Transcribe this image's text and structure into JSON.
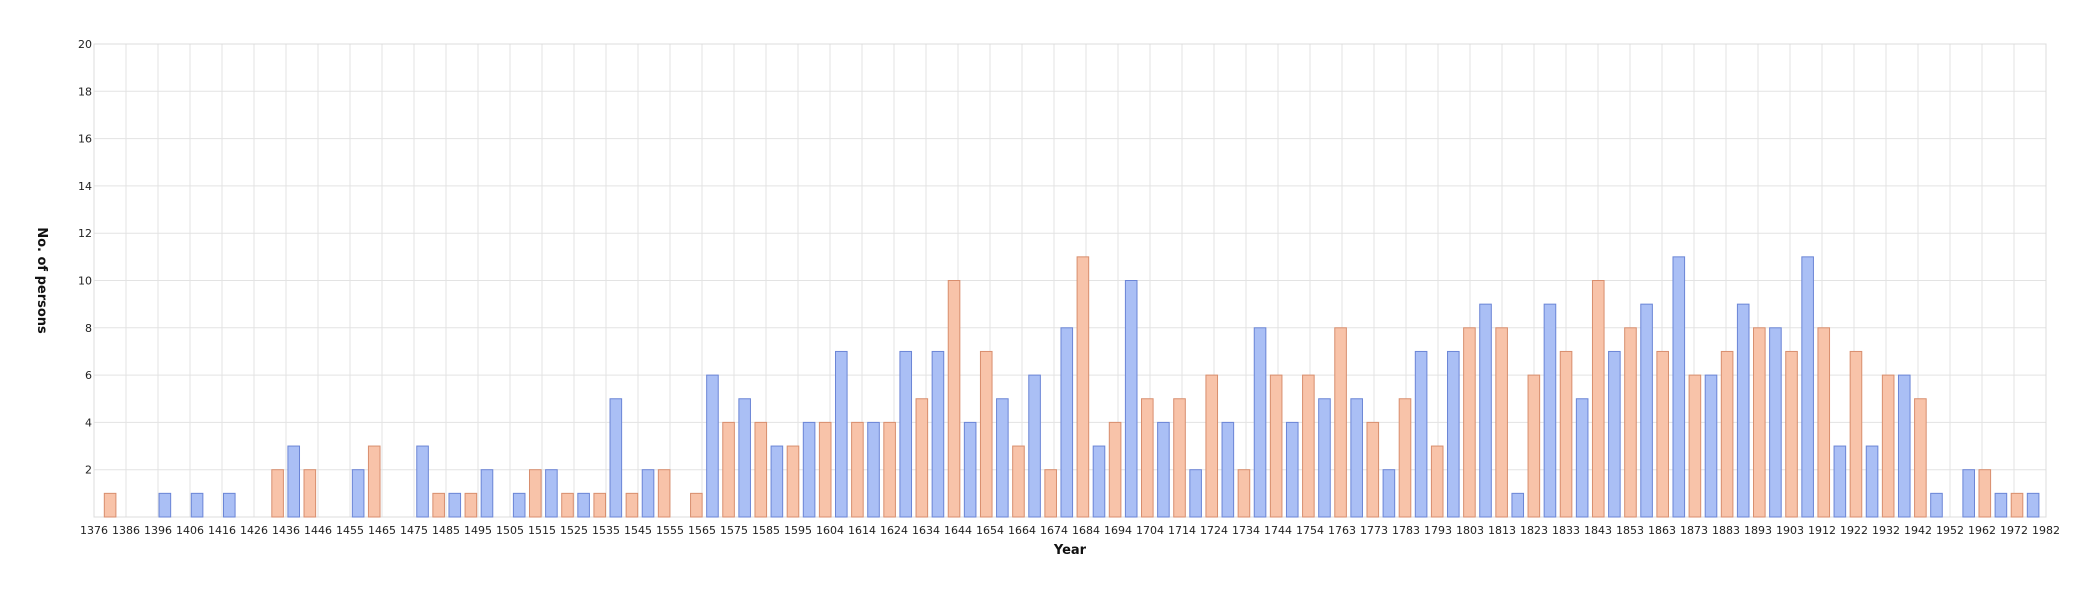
{
  "chart_data": {
    "type": "bar",
    "title": "",
    "xlabel": "Year",
    "ylabel": "No. of persons",
    "ylim": [
      0,
      20
    ],
    "yticks": [
      2,
      4,
      6,
      8,
      10,
      12,
      14,
      16,
      18,
      20
    ],
    "xticks": [
      "1376",
      "1386",
      "1396",
      "1406",
      "1416",
      "1426",
      "1436",
      "1446",
      "1455",
      "1465",
      "1475",
      "1485",
      "1495",
      "1505",
      "1515",
      "1525",
      "1535",
      "1545",
      "1555",
      "1565",
      "1575",
      "1585",
      "1595",
      "1604",
      "1614",
      "1624",
      "1634",
      "1644",
      "1654",
      "1664",
      "1674",
      "1684",
      "1694",
      "1704",
      "1714",
      "1724",
      "1734",
      "1744",
      "1754",
      "1763",
      "1773",
      "1783",
      "1793",
      "1803",
      "1813",
      "1823",
      "1833",
      "1843",
      "1853",
      "1863",
      "1873",
      "1883",
      "1893",
      "1903",
      "1912",
      "1922",
      "1932",
      "1942",
      "1952",
      "1962",
      "1972",
      "1982"
    ],
    "grid": true,
    "legend": "none",
    "colors": {
      "blue_fill": "#aabff5",
      "blue_stroke": "#6b85d6",
      "orange_fill": "#f8c3a9",
      "orange_stroke": "#d88e6e"
    },
    "series": [
      {
        "color": "blue",
        "values": [
          null,
          0,
          1,
          1,
          1,
          0,
          0,
          3,
          0,
          2,
          0,
          0,
          3,
          1,
          0,
          2,
          0,
          1,
          2,
          1,
          5,
          0,
          2,
          0,
          0,
          0,
          0,
          6,
          0,
          5,
          0,
          3,
          0,
          4,
          0,
          7,
          0,
          4,
          0,
          4,
          0,
          7,
          0,
          7,
          0,
          4,
          0,
          5,
          0,
          6,
          0,
          8,
          0,
          3,
          0,
          10,
          0,
          4,
          0,
          2,
          0,
          4,
          0,
          8,
          0,
          4,
          0,
          5,
          0,
          5,
          0,
          2,
          0,
          7,
          0,
          7,
          0,
          9,
          0,
          1,
          0,
          9,
          0,
          5,
          0,
          7,
          0,
          9,
          0,
          11,
          0,
          6,
          0,
          9,
          0,
          8,
          0,
          11,
          0,
          3,
          0,
          3,
          0,
          6,
          0,
          1,
          0,
          2,
          0,
          1,
          0,
          1
        ]
      },
      {
        "color": "orange",
        "values": [
          1,
          0,
          0,
          0,
          0,
          0,
          2,
          0,
          2,
          0,
          0,
          3,
          0,
          0,
          1,
          0,
          1,
          0,
          0,
          2,
          0,
          1,
          0,
          1,
          0,
          1,
          0,
          2,
          0,
          0,
          1,
          0,
          0,
          4,
          0,
          4,
          0,
          3,
          0,
          4,
          0,
          4,
          0,
          4,
          0,
          5,
          0,
          10,
          0,
          7,
          0,
          3,
          0,
          2,
          0,
          11,
          0,
          4,
          0,
          5,
          0,
          5,
          0,
          6,
          0,
          2,
          0,
          6,
          0,
          6,
          0,
          8,
          0,
          4,
          0,
          5,
          0,
          3,
          0,
          8,
          0,
          8,
          0,
          6,
          0,
          7,
          0,
          10,
          0,
          8,
          0,
          7,
          0,
          6,
          0,
          7,
          0,
          8,
          0,
          7,
          0,
          8,
          0,
          7,
          0,
          6,
          0,
          5,
          0,
          2,
          0,
          1,
          0
        ]
      }
    ],
    "bars": [
      {
        "x": 1381,
        "y": 1,
        "c": "orange"
      },
      {
        "x": 1398,
        "y": 1,
        "c": "blue"
      },
      {
        "x": 1408,
        "y": 1,
        "c": "blue"
      },
      {
        "x": 1418,
        "y": 1,
        "c": "blue"
      },
      {
        "x": 1433,
        "y": 2,
        "c": "orange"
      },
      {
        "x": 1438,
        "y": 3,
        "c": "blue"
      },
      {
        "x": 1443,
        "y": 2,
        "c": "orange"
      },
      {
        "x": 1458,
        "y": 2,
        "c": "blue"
      },
      {
        "x": 1463,
        "y": 3,
        "c": "orange"
      },
      {
        "x": 1478,
        "y": 3,
        "c": "blue"
      },
      {
        "x": 1483,
        "y": 1,
        "c": "orange"
      },
      {
        "x": 1488,
        "y": 1,
        "c": "blue"
      },
      {
        "x": 1493,
        "y": 1,
        "c": "orange"
      },
      {
        "x": 1498,
        "y": 2,
        "c": "blue"
      },
      {
        "x": 1508,
        "y": 1,
        "c": "blue"
      },
      {
        "x": 1513,
        "y": 2,
        "c": "orange"
      },
      {
        "x": 1518,
        "y": 2,
        "c": "blue"
      },
      {
        "x": 1523,
        "y": 1,
        "c": "orange"
      },
      {
        "x": 1528,
        "y": 1,
        "c": "blue"
      },
      {
        "x": 1533,
        "y": 1,
        "c": "orange"
      },
      {
        "x": 1538,
        "y": 5,
        "c": "blue"
      },
      {
        "x": 1543,
        "y": 1,
        "c": "orange"
      },
      {
        "x": 1548,
        "y": 2,
        "c": "blue"
      },
      {
        "x": 1553,
        "y": 2,
        "c": "orange"
      },
      {
        "x": 1563,
        "y": 1,
        "c": "orange"
      },
      {
        "x": 1568,
        "y": 6,
        "c": "blue"
      },
      {
        "x": 1573,
        "y": 4,
        "c": "orange"
      },
      {
        "x": 1578,
        "y": 5,
        "c": "blue"
      },
      {
        "x": 1583,
        "y": 4,
        "c": "orange"
      },
      {
        "x": 1588,
        "y": 3,
        "c": "blue"
      },
      {
        "x": 1593,
        "y": 3,
        "c": "orange"
      },
      {
        "x": 1598,
        "y": 4,
        "c": "blue"
      },
      {
        "x": 1603,
        "y": 4,
        "c": "orange"
      },
      {
        "x": 1608,
        "y": 7,
        "c": "blue"
      },
      {
        "x": 1613,
        "y": 4,
        "c": "orange"
      },
      {
        "x": 1618,
        "y": 4,
        "c": "blue"
      },
      {
        "x": 1623,
        "y": 4,
        "c": "orange"
      },
      {
        "x": 1628,
        "y": 7,
        "c": "blue"
      },
      {
        "x": 1633,
        "y": 5,
        "c": "orange"
      },
      {
        "x": 1638,
        "y": 7,
        "c": "blue"
      },
      {
        "x": 1643,
        "y": 10,
        "c": "orange"
      },
      {
        "x": 1648,
        "y": 4,
        "c": "blue"
      },
      {
        "x": 1653,
        "y": 7,
        "c": "orange"
      },
      {
        "x": 1658,
        "y": 5,
        "c": "blue"
      },
      {
        "x": 1663,
        "y": 3,
        "c": "orange"
      },
      {
        "x": 1668,
        "y": 6,
        "c": "blue"
      },
      {
        "x": 1673,
        "y": 2,
        "c": "orange"
      },
      {
        "x": 1678,
        "y": 8,
        "c": "blue"
      },
      {
        "x": 1683,
        "y": 11,
        "c": "orange"
      },
      {
        "x": 1688,
        "y": 3,
        "c": "blue"
      },
      {
        "x": 1693,
        "y": 4,
        "c": "orange"
      },
      {
        "x": 1698,
        "y": 10,
        "c": "blue"
      },
      {
        "x": 1703,
        "y": 5,
        "c": "orange"
      },
      {
        "x": 1708,
        "y": 4,
        "c": "blue"
      },
      {
        "x": 1713,
        "y": 5,
        "c": "orange"
      },
      {
        "x": 1718,
        "y": 2,
        "c": "blue"
      },
      {
        "x": 1723,
        "y": 6,
        "c": "orange"
      },
      {
        "x": 1728,
        "y": 4,
        "c": "blue"
      },
      {
        "x": 1733,
        "y": 2,
        "c": "orange"
      },
      {
        "x": 1738,
        "y": 8,
        "c": "blue"
      },
      {
        "x": 1743,
        "y": 6,
        "c": "orange"
      },
      {
        "x": 1748,
        "y": 4,
        "c": "blue"
      },
      {
        "x": 1753,
        "y": 6,
        "c": "orange"
      },
      {
        "x": 1758,
        "y": 5,
        "c": "blue"
      },
      {
        "x": 1763,
        "y": 8,
        "c": "orange"
      },
      {
        "x": 1768,
        "y": 5,
        "c": "blue"
      },
      {
        "x": 1773,
        "y": 4,
        "c": "orange"
      },
      {
        "x": 1778,
        "y": 2,
        "c": "blue"
      },
      {
        "x": 1783,
        "y": 5,
        "c": "orange"
      },
      {
        "x": 1788,
        "y": 7,
        "c": "blue"
      },
      {
        "x": 1793,
        "y": 3,
        "c": "orange"
      },
      {
        "x": 1798,
        "y": 7,
        "c": "blue"
      },
      {
        "x": 1803,
        "y": 8,
        "c": "orange"
      },
      {
        "x": 1808,
        "y": 9,
        "c": "blue"
      },
      {
        "x": 1813,
        "y": 8,
        "c": "orange"
      },
      {
        "x": 1818,
        "y": 1,
        "c": "blue"
      },
      {
        "x": 1823,
        "y": 6,
        "c": "orange"
      },
      {
        "x": 1828,
        "y": 9,
        "c": "blue"
      },
      {
        "x": 1833,
        "y": 7,
        "c": "orange"
      },
      {
        "x": 1838,
        "y": 5,
        "c": "blue"
      },
      {
        "x": 1843,
        "y": 10,
        "c": "orange"
      },
      {
        "x": 1848,
        "y": 7,
        "c": "blue"
      },
      {
        "x": 1853,
        "y": 8,
        "c": "orange"
      },
      {
        "x": 1858,
        "y": 9,
        "c": "blue"
      },
      {
        "x": 1863,
        "y": 7,
        "c": "orange"
      },
      {
        "x": 1868,
        "y": 11,
        "c": "blue"
      },
      {
        "x": 1873,
        "y": 6,
        "c": "orange"
      },
      {
        "x": 1878,
        "y": 6,
        "c": "blue"
      },
      {
        "x": 1883,
        "y": 7,
        "c": "orange"
      },
      {
        "x": 1888,
        "y": 9,
        "c": "blue"
      },
      {
        "x": 1893,
        "y": 8,
        "c": "orange"
      },
      {
        "x": 1898,
        "y": 8,
        "c": "blue"
      },
      {
        "x": 1903,
        "y": 7,
        "c": "orange"
      },
      {
        "x": 1908,
        "y": 11,
        "c": "blue"
      },
      {
        "x": 1913,
        "y": 8,
        "c": "orange"
      },
      {
        "x": 1918,
        "y": 3,
        "c": "blue"
      },
      {
        "x": 1923,
        "y": 7,
        "c": "orange"
      },
      {
        "x": 1928,
        "y": 3,
        "c": "blue"
      },
      {
        "x": 1933,
        "y": 6,
        "c": "orange"
      },
      {
        "x": 1938,
        "y": 6,
        "c": "blue"
      },
      {
        "x": 1943,
        "y": 5,
        "c": "orange"
      },
      {
        "x": 1948,
        "y": 1,
        "c": "blue"
      },
      {
        "x": 1958,
        "y": 2,
        "c": "blue"
      },
      {
        "x": 1963,
        "y": 2,
        "c": "orange"
      },
      {
        "x": 1968,
        "y": 1,
        "c": "blue"
      },
      {
        "x": 1973,
        "y": 1,
        "c": "orange"
      },
      {
        "x": 1978,
        "y": 1,
        "c": "blue"
      }
    ]
  }
}
